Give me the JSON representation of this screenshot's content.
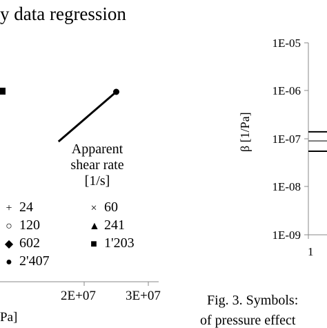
{
  "chart_data": [
    {
      "type": "line",
      "title": "y data regression",
      "xlabel": "Pa]",
      "x_ticks": [
        "2E+07",
        "3E+07"
      ],
      "legend": {
        "title_lines": [
          "Apparent",
          "shear rate",
          "[1/s]"
        ],
        "entries": [
          {
            "marker": "+",
            "marker_name": "plus-marker",
            "label": "24"
          },
          {
            "marker": "×",
            "marker_name": "cross-marker",
            "label": "60"
          },
          {
            "marker": "○",
            "marker_name": "circle-marker",
            "label": "120"
          },
          {
            "marker": "▲",
            "marker_name": "triangle-marker",
            "label": "241"
          },
          {
            "marker": "◆",
            "marker_name": "diamond-marker",
            "label": "602"
          },
          {
            "marker": "■",
            "marker_name": "square-marker",
            "label": "1'203"
          },
          {
            "marker": "●",
            "marker_name": "filled-circle-marker",
            "label": "2'407"
          }
        ]
      },
      "series": [
        {
          "label": "2'407",
          "x": [
            16000000.0,
            25000000.0
          ],
          "y_rel": [
            0.0,
            0.6
          ]
        }
      ]
    },
    {
      "type": "line",
      "ylabel": "β [1/Pa]",
      "y_scale": "log",
      "y_ticks": [
        "1E-05",
        "1E-06",
        "1E-07",
        "1E-08",
        "1E-09"
      ],
      "x_ticks": [
        "1"
      ],
      "lines_y": [
        1.4e-07,
        9e-08,
        5.5e-08
      ]
    }
  ],
  "caption": {
    "line1": "Fig. 3. Symbols:",
    "line2": "of pressure effect"
  },
  "colors": {
    "ink": "#000000",
    "axis": "#888888",
    "grid": "#b8b8b8"
  }
}
